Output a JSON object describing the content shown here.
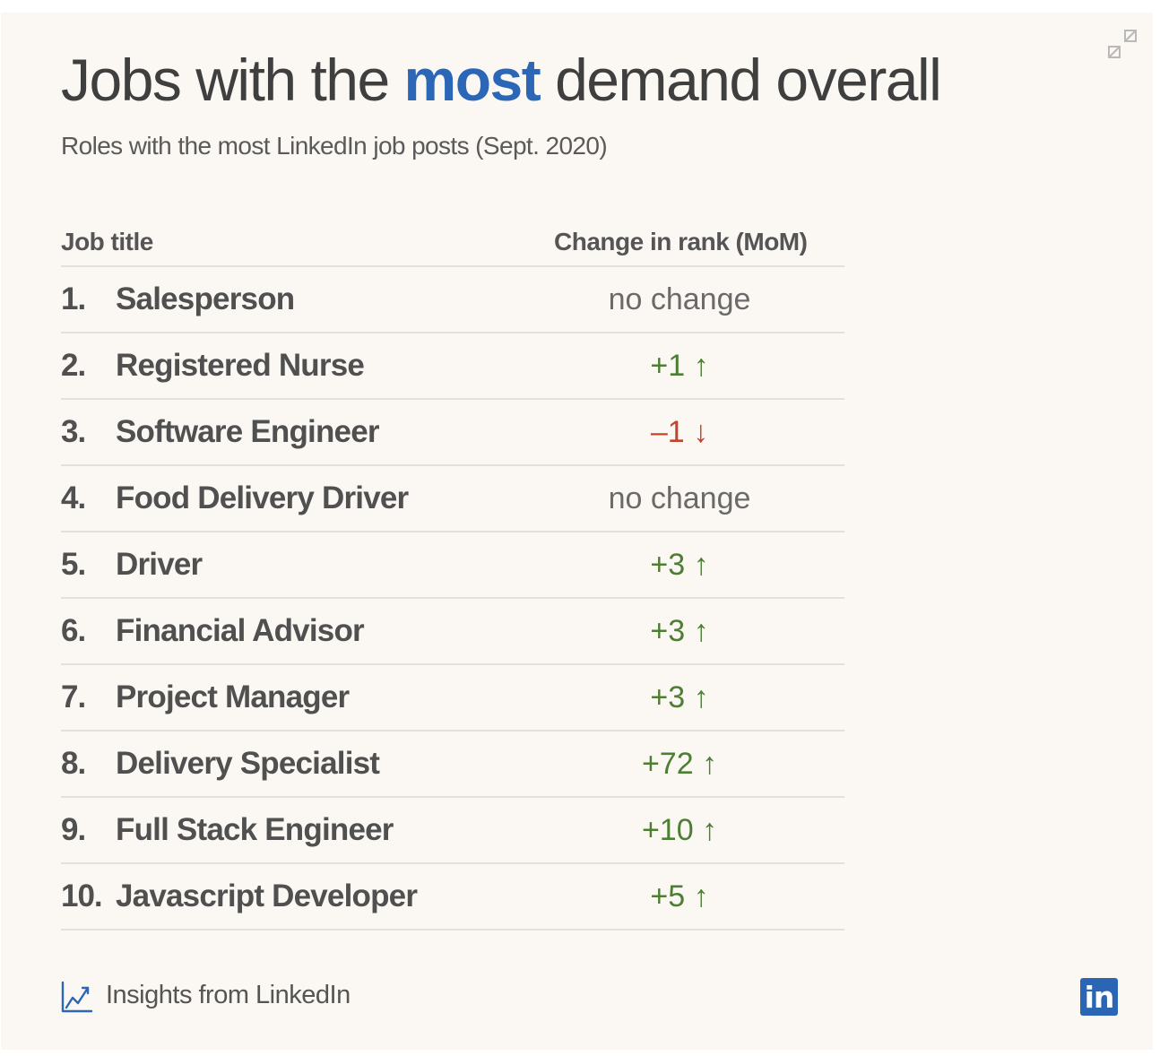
{
  "title": {
    "prefix": "Jobs with the ",
    "highlight": "most",
    "suffix": " demand overall"
  },
  "subtitle": "Roles with the most LinkedIn job posts (Sept. 2020)",
  "table": {
    "headers": {
      "job_title": "Job title",
      "change": "Change in rank (MoM)"
    },
    "rows": [
      {
        "rank": "1.",
        "job": "Salesperson",
        "change": "no change",
        "direction": "same"
      },
      {
        "rank": "2.",
        "job": "Registered Nurse",
        "change": "+1 ↑",
        "direction": "up"
      },
      {
        "rank": "3.",
        "job": "Software Engineer",
        "change": "–1 ↓",
        "direction": "down"
      },
      {
        "rank": "4.",
        "job": "Food Delivery Driver",
        "change": "no change",
        "direction": "same"
      },
      {
        "rank": "5.",
        "job": "Driver",
        "change": "+3 ↑",
        "direction": "up"
      },
      {
        "rank": "6.",
        "job": "Financial Advisor",
        "change": "+3 ↑",
        "direction": "up"
      },
      {
        "rank": "7.",
        "job": "Project Manager",
        "change": "+3 ↑",
        "direction": "up"
      },
      {
        "rank": "8.",
        "job": "Delivery Specialist",
        "change": "+72 ↑",
        "direction": "up"
      },
      {
        "rank": "9.",
        "job": "Full Stack Engineer",
        "change": "+10 ↑",
        "direction": "up"
      },
      {
        "rank": "10.",
        "job": "Javascript Developer",
        "change": "+5 ↑",
        "direction": "up"
      }
    ]
  },
  "footer": {
    "label": "Insights from LinkedIn",
    "logo_text": "in"
  },
  "colors": {
    "accent": "#2b67b6",
    "up": "#4e7e34",
    "down": "#c2442c",
    "background": "#fbf8f3"
  },
  "icons": {
    "expand": "expand-icon",
    "insights": "trend-chart-icon",
    "logo": "linkedin-logo"
  }
}
